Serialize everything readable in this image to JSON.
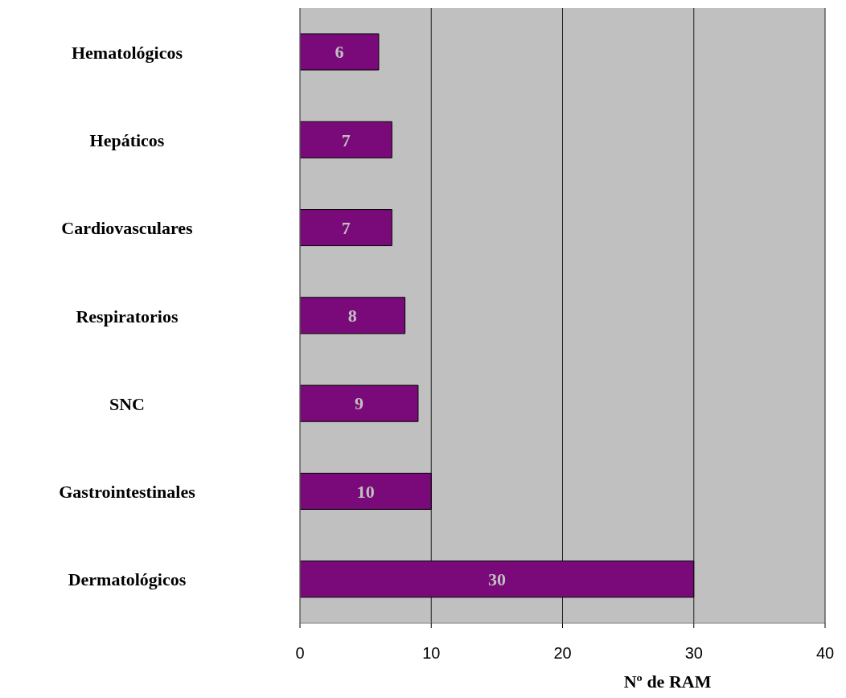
{
  "chart_data": {
    "type": "bar",
    "orientation": "horizontal",
    "xlabel": "Nº de RAM",
    "categories": [
      "Hematológicos",
      "Hepáticos",
      "Cardiovasculares",
      "Respiratorios",
      "SNC",
      "Gastrointestinales",
      "Dermatológicos"
    ],
    "values": [
      6,
      7,
      7,
      8,
      9,
      10,
      30
    ],
    "color": "#7a0a7a",
    "xlim": [
      0,
      40
    ],
    "xticks": [
      0,
      10,
      20,
      30,
      40
    ],
    "grid": "x",
    "data_labels": true
  }
}
